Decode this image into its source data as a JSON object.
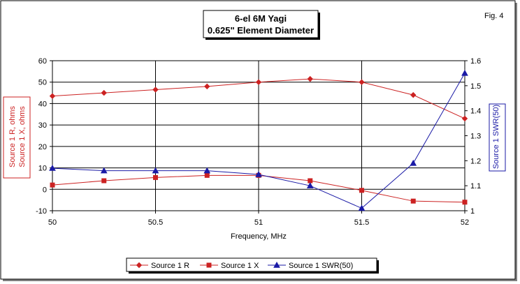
{
  "figure_label": "Fig. 4",
  "colors": {
    "red": "#cc2222",
    "blue": "#1a1aa6",
    "grid": "#000000",
    "background": "#ffffff",
    "border": "#000000",
    "shadow": "#808080"
  },
  "chart_data": {
    "type": "line",
    "title": "6-el 6M Yagi",
    "subtitle": "0.625\" Element Diameter",
    "xlabel": "Frequency, MHz",
    "ylabel_left": [
      "Source 1 R, ohms",
      "Source 1 X, ohms"
    ],
    "ylabel_right": "Source 1 SWR(50)",
    "xlim": [
      50,
      52
    ],
    "ylim_left": [
      -10,
      60
    ],
    "ylim_right": [
      1,
      1.6
    ],
    "x_ticks": [
      "50",
      "50.5",
      "51",
      "51.5",
      "52"
    ],
    "x_tick_values": [
      50,
      50.5,
      51,
      51.5,
      52
    ],
    "y_left_ticks": [
      "60",
      "50",
      "40",
      "30",
      "20",
      "10",
      "0",
      "-10"
    ],
    "y_left_tick_values": [
      60,
      50,
      40,
      30,
      20,
      10,
      0,
      -10
    ],
    "y_right_ticks": [
      "1.6",
      "1.5",
      "1.4",
      "1.3",
      "1.2",
      "1.1",
      "1"
    ],
    "y_right_tick_values": [
      1.6,
      1.5,
      1.4,
      1.3,
      1.2,
      1.1,
      1.0
    ],
    "grid": "vertical major lines and horizontal major lines",
    "legend_placement": "bottom-center",
    "series": [
      {
        "name": "Source 1 R",
        "axis": "left",
        "marker": "diamond",
        "color": "#cc2222",
        "x": [
          50,
          50.25,
          50.5,
          50.75,
          51,
          51.25,
          51.5,
          51.75,
          52
        ],
        "values": [
          43.5,
          45,
          46.5,
          48,
          50,
          51.5,
          50,
          44,
          33
        ]
      },
      {
        "name": "Source 1 X",
        "axis": "left",
        "marker": "square",
        "color": "#cc2222",
        "x": [
          50,
          50.25,
          50.5,
          50.75,
          51,
          51.25,
          51.5,
          51.75,
          52
        ],
        "values": [
          2,
          4,
          5.5,
          6.5,
          6.5,
          4,
          -0.5,
          -5.5,
          -6
        ]
      },
      {
        "name": "Source 1 SWR(50)",
        "axis": "right",
        "marker": "triangle",
        "color": "#1a1aa6",
        "x": [
          50,
          50.25,
          50.5,
          50.75,
          51,
          51.25,
          51.5,
          51.75,
          52
        ],
        "values": [
          1.17,
          1.16,
          1.16,
          1.16,
          1.145,
          1.1,
          1.01,
          1.19,
          1.55
        ]
      }
    ]
  }
}
